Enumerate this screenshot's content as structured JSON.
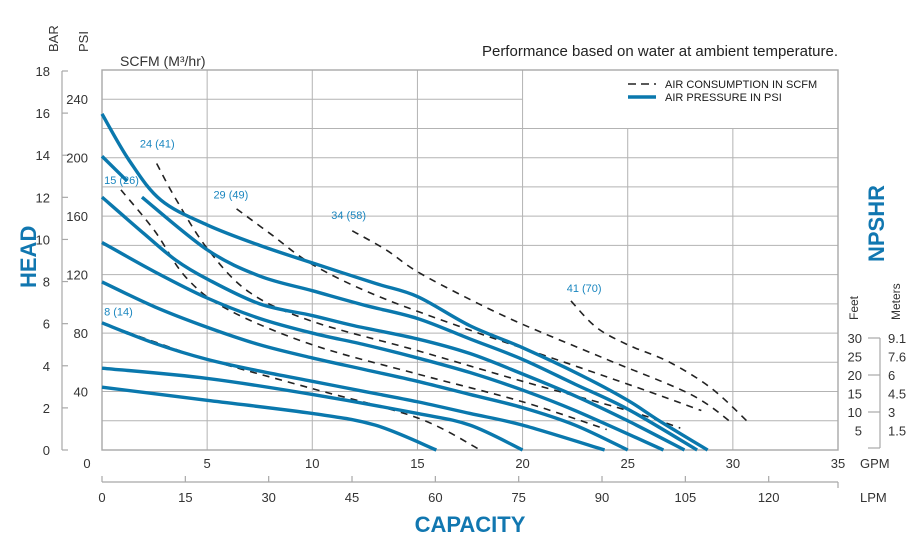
{
  "chart_data": {
    "type": "line",
    "title": "Performance based on water at ambient temperature.",
    "subtitle": "SCFM (M³/hr)",
    "xlabel": "CAPACITY",
    "ylabel": "HEAD",
    "right_label": "NPSHR",
    "x_unit_primary": "GPM",
    "x_unit_secondary": "LPM",
    "y_unit_primary": "PSI",
    "y_unit_secondary": "BAR",
    "xlim": [
      0,
      35
    ],
    "ylim": [
      0,
      260
    ],
    "grid": true,
    "legend_placement": "top-right",
    "x_ticks_gpm": [
      "0",
      "5",
      "10",
      "15",
      "20",
      "25",
      "30",
      "35"
    ],
    "x_ticks_lpm": [
      "0",
      "15",
      "30",
      "45",
      "60",
      "75",
      "90",
      "105",
      "120"
    ],
    "y_ticks_psi": [
      "40",
      "80",
      "120",
      "160",
      "200",
      "240"
    ],
    "y_ticks_bar": [
      "0",
      "2",
      "4",
      "6",
      "8",
      "10",
      "12",
      "14",
      "16",
      "18"
    ],
    "npshr": {
      "feet_label": "Feet",
      "meters_label": "Meters",
      "feet": [
        "30",
        "25",
        "20",
        "15",
        "10",
        "5"
      ],
      "meters": [
        "9.1",
        "7.6",
        "6",
        "4.5",
        "3",
        "1.5"
      ]
    },
    "legend": [
      {
        "name": "AIR CONSUMPTION IN SCFM",
        "style": "dashed",
        "color": "#222222"
      },
      {
        "name": "AIR PRESSURE IN PSI",
        "style": "solid",
        "color": "#0a78ad"
      }
    ],
    "series_pressure": [
      {
        "name": "pressure-1",
        "points": [
          [
            0,
            230
          ],
          [
            1.3,
            198
          ],
          [
            2.8,
            171
          ],
          [
            5,
            154
          ],
          [
            7.5,
            140
          ],
          [
            10,
            128
          ],
          [
            13,
            114
          ],
          [
            15,
            105
          ],
          [
            17.5,
            85
          ],
          [
            20,
            70
          ],
          [
            22.8,
            51
          ],
          [
            25,
            34
          ],
          [
            26.5,
            20
          ],
          [
            28.8,
            0
          ]
        ]
      },
      {
        "name": "pressure-2",
        "points": [
          [
            0,
            201
          ],
          [
            1.2,
            184
          ]
        ],
        "points2": [
          [
            1.9,
            173
          ],
          [
            5,
            137
          ],
          [
            7.5,
            119
          ],
          [
            10,
            109
          ],
          [
            12.5,
            99
          ],
          [
            15,
            90
          ],
          [
            17.5,
            76
          ],
          [
            20,
            62
          ],
          [
            22.5,
            45
          ],
          [
            25,
            28
          ],
          [
            28.3,
            0
          ]
        ]
      },
      {
        "name": "pressure-3",
        "points": [
          [
            0,
            173
          ],
          [
            2,
            148
          ],
          [
            3.5,
            130
          ],
          [
            5,
            117
          ],
          [
            7.5,
            100
          ],
          [
            10,
            92
          ],
          [
            12,
            85
          ],
          [
            15,
            76
          ],
          [
            17.5,
            66
          ],
          [
            20,
            52
          ],
          [
            22.5,
            37
          ],
          [
            25,
            20
          ],
          [
            27.7,
            0
          ]
        ]
      },
      {
        "name": "pressure-4",
        "points": [
          [
            0,
            142
          ],
          [
            2.5,
            122
          ],
          [
            5,
            104
          ],
          [
            7.5,
            90
          ],
          [
            10,
            80
          ],
          [
            12.5,
            72
          ],
          [
            15,
            63
          ],
          [
            17.5,
            53
          ],
          [
            20,
            41
          ],
          [
            22.5,
            27
          ],
          [
            26.7,
            0
          ]
        ]
      },
      {
        "name": "pressure-5",
        "points": [
          [
            0,
            115
          ],
          [
            2.5,
            98
          ],
          [
            5,
            84
          ],
          [
            7.5,
            72
          ],
          [
            10,
            63
          ],
          [
            12.5,
            55
          ],
          [
            15,
            47
          ],
          [
            17.5,
            38
          ],
          [
            20,
            29
          ],
          [
            22.5,
            17
          ],
          [
            25,
            0
          ]
        ]
      },
      {
        "name": "pressure-6",
        "points": [
          [
            0,
            87
          ],
          [
            2.5,
            73
          ],
          [
            5,
            62
          ],
          [
            7.5,
            54
          ],
          [
            10,
            47
          ],
          [
            12.5,
            40
          ],
          [
            15,
            33
          ],
          [
            17.5,
            25
          ],
          [
            20,
            17
          ],
          [
            23.9,
            0
          ]
        ]
      },
      {
        "name": "pressure-7",
        "points": [
          [
            0,
            56
          ],
          [
            5,
            49
          ],
          [
            10,
            38
          ],
          [
            15,
            25
          ],
          [
            17.5,
            17
          ],
          [
            20,
            0
          ]
        ]
      },
      {
        "name": "pressure-8",
        "points": [
          [
            0,
            43
          ],
          [
            5,
            34
          ],
          [
            10,
            25
          ],
          [
            13,
            17
          ],
          [
            15.9,
            0
          ]
        ]
      }
    ],
    "series_air": [
      {
        "name": "8 (14)",
        "label_at": [
          0.1,
          92
        ],
        "points": [
          [
            0,
            87
          ],
          [
            2.5,
            74
          ],
          [
            5,
            62
          ],
          [
            10,
            42
          ],
          [
            15,
            22
          ],
          [
            18,
            0
          ]
        ]
      },
      {
        "name": "15 (26)",
        "label_at": [
          0.1,
          182
        ],
        "points": [
          [
            0.9,
            178
          ],
          [
            2.5,
            150
          ],
          [
            4,
            118
          ],
          [
            6,
            96
          ],
          [
            10,
            72
          ],
          [
            15,
            52
          ],
          [
            20,
            33
          ],
          [
            24,
            14
          ]
        ]
      },
      {
        "name": "24 (41)",
        "label_at": [
          1.8,
          207
        ],
        "points": [
          [
            2.6,
            196
          ],
          [
            3.5,
            172
          ],
          [
            5,
            138
          ],
          [
            7,
            108
          ],
          [
            10,
            88
          ],
          [
            15,
            68
          ],
          [
            20,
            47
          ],
          [
            25,
            27
          ],
          [
            27.5,
            15
          ]
        ]
      },
      {
        "name": "29 (49)",
        "label_at": [
          5.3,
          172
        ],
        "points": [
          [
            6.4,
            165
          ],
          [
            8,
            148
          ],
          [
            10,
            127
          ],
          [
            13,
            106
          ],
          [
            17.5,
            82
          ],
          [
            22,
            60
          ],
          [
            26,
            40
          ],
          [
            28.5,
            27
          ]
        ]
      },
      {
        "name": "34 (58)",
        "label_at": [
          10.9,
          158
        ],
        "points": [
          [
            11.9,
            150
          ],
          [
            13.5,
            137
          ],
          [
            15,
            122
          ],
          [
            17.5,
            103
          ],
          [
            20,
            86
          ],
          [
            24,
            62
          ],
          [
            28,
            38
          ],
          [
            30,
            18
          ]
        ]
      },
      {
        "name": "41 (70)",
        "label_at": [
          22.1,
          108
        ],
        "points": [
          [
            22.3,
            102
          ],
          [
            23.5,
            84
          ],
          [
            25,
            72
          ],
          [
            27,
            60
          ],
          [
            29,
            42
          ],
          [
            30.8,
            18
          ]
        ]
      }
    ],
    "colors": {
      "pressure": "#0a78ad",
      "air": "#222222",
      "label_blue": "#1177b0"
    }
  }
}
